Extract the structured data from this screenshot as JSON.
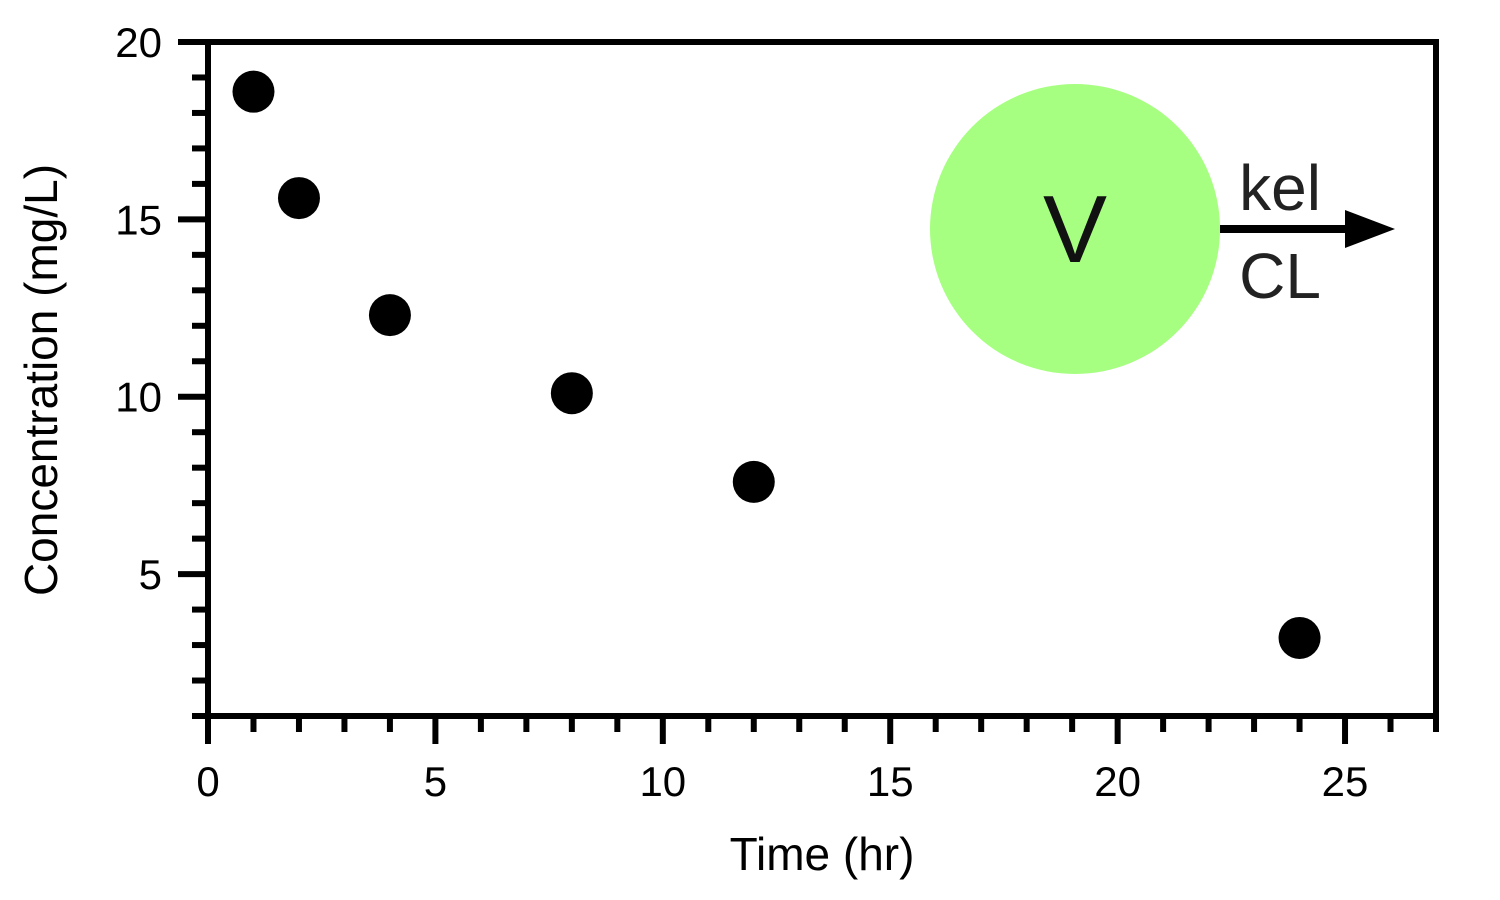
{
  "chart_data": {
    "type": "scatter",
    "xlabel": "Time (hr)",
    "ylabel": "Concentration (mg/L)",
    "xlim": [
      0,
      27
    ],
    "ylim": [
      1,
      20
    ],
    "x_ticks": [
      0,
      5,
      10,
      15,
      20,
      25
    ],
    "y_ticks": [
      5,
      10,
      15,
      20
    ],
    "grid": false,
    "legend": "none",
    "marker_color": "#000000",
    "x": [
      1,
      2,
      4,
      8,
      12,
      24
    ],
    "y": [
      18.6,
      15.6,
      12.3,
      10.1,
      7.6,
      3.2
    ]
  },
  "diagram": {
    "compartment_label": "V",
    "compartment_color": "#a6ff80",
    "arrow_top_label": "kel",
    "arrow_bottom_label": "CL"
  }
}
